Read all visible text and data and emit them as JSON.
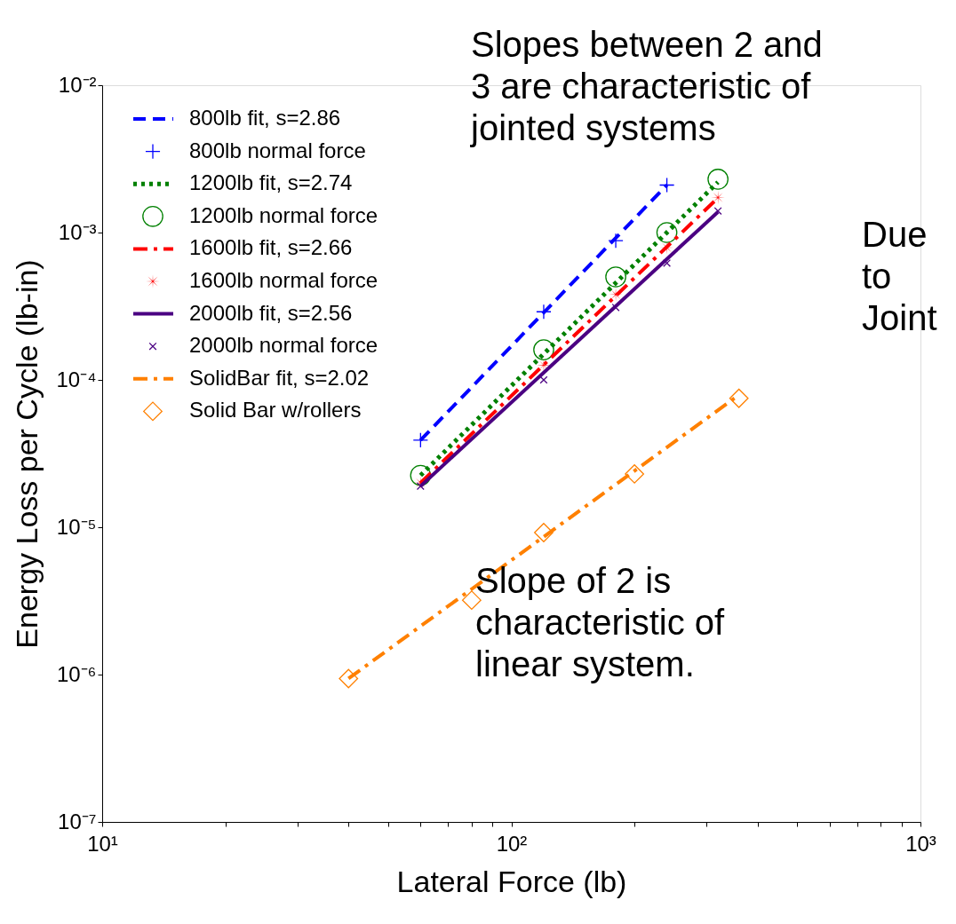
{
  "chart_data": {
    "type": "line",
    "xlabel": "Lateral Force (lb)",
    "ylabel": "Energy Loss per Cycle (lb-in)",
    "log": "xy",
    "legend": "top left",
    "grid": false,
    "xlim": [
      10,
      1000
    ],
    "ylim": [
      1e-07,
      0.01
    ],
    "xticks": [
      {
        "value": 10,
        "label": "10¹"
      },
      {
        "value": 20,
        "label": null
      },
      {
        "value": 30,
        "label": null
      },
      {
        "value": 40,
        "label": null
      },
      {
        "value": 50,
        "label": null
      },
      {
        "value": 60,
        "label": null
      },
      {
        "value": 70,
        "label": null
      },
      {
        "value": 80,
        "label": null
      },
      {
        "value": 90,
        "label": null
      },
      {
        "value": 100,
        "label": "10²"
      },
      {
        "value": 200,
        "label": null
      },
      {
        "value": 300,
        "label": null
      },
      {
        "value": 400,
        "label": null
      },
      {
        "value": 500,
        "label": null
      },
      {
        "value": 600,
        "label": null
      },
      {
        "value": 700,
        "label": null
      },
      {
        "value": 800,
        "label": null
      },
      {
        "value": 900,
        "label": null
      },
      {
        "value": 1000,
        "label": "10³"
      }
    ],
    "yticks": [
      {
        "value": 1e-07,
        "label": "10⁻⁷"
      },
      {
        "value": 1e-06,
        "label": "10⁻⁶"
      },
      {
        "value": 1e-05,
        "label": "10⁻⁵"
      },
      {
        "value": 0.0001,
        "label": "10⁻⁴"
      },
      {
        "value": 0.001,
        "label": "10⁻³"
      },
      {
        "value": 0.01,
        "label": "10⁻²"
      }
    ],
    "series": [
      {
        "name": "800lb  fit, s=2.86",
        "type": "line",
        "line_style": "dashed",
        "marker": "none",
        "color": "#0000ff",
        "x": [
          60,
          240
        ],
        "values": [
          3.9e-05,
          0.0021
        ]
      },
      {
        "name": "800lb normal force",
        "type": "scatter",
        "marker": "cross",
        "color": "#0000ff",
        "x": [
          60,
          120,
          180,
          240
        ],
        "values": [
          3.9e-05,
          0.00029,
          0.00088,
          0.0021
        ]
      },
      {
        "name": "1200lb  fit, s=2.74",
        "type": "line",
        "line_style": "dotted",
        "marker": "none",
        "color": "#008000",
        "x": [
          60,
          320
        ],
        "values": [
          2.25e-05,
          0.0022
        ]
      },
      {
        "name": "1200lb normal force",
        "type": "scatter",
        "marker": "circle",
        "color": "#008000",
        "x": [
          60,
          120,
          180,
          240,
          320
        ],
        "values": [
          2.25e-05,
          0.00016,
          0.0005,
          0.001,
          0.0023
        ]
      },
      {
        "name": "1600lb  fit, s=2.66",
        "type": "line",
        "line_style": "dashdot",
        "marker": "none",
        "color": "#ff0000",
        "x": [
          60,
          320
        ],
        "values": [
          2e-05,
          0.00172
        ]
      },
      {
        "name": "1600lb normal force",
        "type": "scatter",
        "marker": "star",
        "color": "#ff0000",
        "x": [
          60,
          120,
          180,
          240,
          320
        ],
        "values": [
          2e-05,
          0.000126,
          0.00038,
          0.00079,
          0.00173
        ]
      },
      {
        "name": "2000lb  fit, s=2.56",
        "type": "line",
        "line_style": "solid",
        "marker": "none",
        "color": "#4b0082",
        "x": [
          60,
          320
        ],
        "values": [
          1.9e-05,
          0.00138
        ]
      },
      {
        "name": "2000lb normal force",
        "type": "scatter",
        "marker": "x",
        "color": "#4b0082",
        "x": [
          60,
          120,
          180,
          240,
          320
        ],
        "values": [
          1.9e-05,
          0.0001,
          0.00031,
          0.00062,
          0.0014
        ]
      },
      {
        "name": "SolidBar  fit, s=2.02",
        "type": "line",
        "line_style": "dashdot",
        "marker": "none",
        "color": "#ff8000",
        "x": [
          40,
          360
        ],
        "values": [
          9.4e-07,
          7.9e-05
        ]
      },
      {
        "name": "Solid Bar w/rollers",
        "type": "scatter",
        "marker": "diamond",
        "color": "#ff8000",
        "x": [
          40,
          80,
          120,
          200,
          360
        ],
        "values": [
          9.4e-07,
          3.2e-06,
          9.2e-06,
          2.3e-05,
          7.5e-05
        ]
      }
    ],
    "annotations": [
      "Slopes between 2 and\n3 are characteristic of\njointed systems",
      "Due\nto\nJoint",
      "Slope of 2 is\ncharacteristic of\nlinear system."
    ]
  }
}
